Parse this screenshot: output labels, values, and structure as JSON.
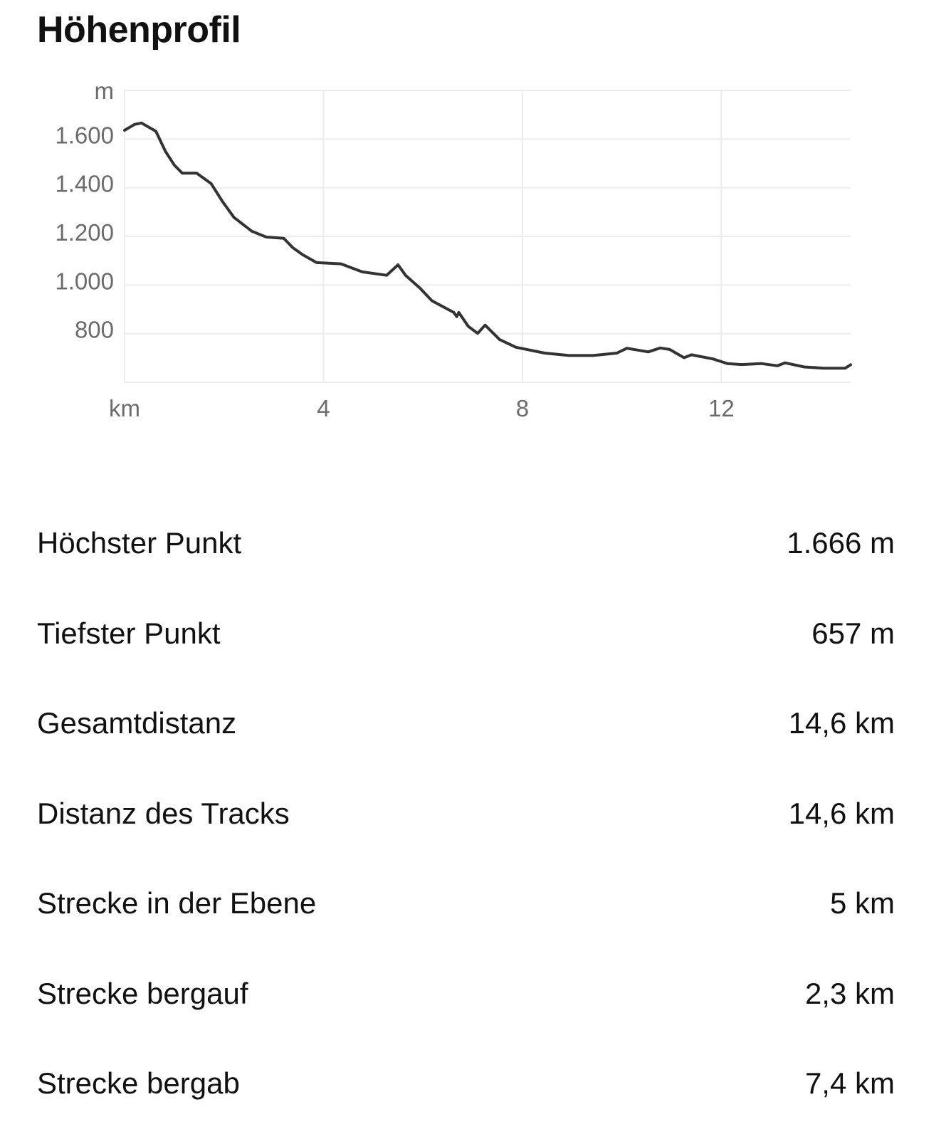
{
  "title": "Höhenprofil",
  "chart_data": {
    "type": "line",
    "title": "",
    "ylabel": "m",
    "xlabel": "km",
    "xlim": [
      0,
      14.6
    ],
    "ylim": [
      600,
      1800
    ],
    "grid": true,
    "line_color": "#333333",
    "x_ticks": [
      {
        "value": 0,
        "label": "km"
      },
      {
        "value": 4,
        "label": "4"
      },
      {
        "value": 8,
        "label": "8"
      },
      {
        "value": 12,
        "label": "12"
      }
    ],
    "y_ticks": [
      {
        "value": 1800,
        "label": "m"
      },
      {
        "value": 1600,
        "label": "1.600"
      },
      {
        "value": 1400,
        "label": "1.400"
      },
      {
        "value": 1200,
        "label": "1.200"
      },
      {
        "value": 1000,
        "label": "1.000"
      },
      {
        "value": 800,
        "label": "800"
      }
    ],
    "x": [
      0,
      0.2,
      0.34,
      0.63,
      0.82,
      1.0,
      1.16,
      1.45,
      1.74,
      1.98,
      2.2,
      2.56,
      2.85,
      3.2,
      3.38,
      3.57,
      3.86,
      4.35,
      4.78,
      5.27,
      5.5,
      5.65,
      5.94,
      6.18,
      6.62,
      6.68,
      6.72,
      6.91,
      7.1,
      7.25,
      7.54,
      7.87,
      8.45,
      8.94,
      9.42,
      9.9,
      10.1,
      10.53,
      10.77,
      10.96,
      11.25,
      11.4,
      11.83,
      12.12,
      12.41,
      12.8,
      13.13,
      13.28,
      13.67,
      14.06,
      14.49,
      14.6
    ],
    "y": [
      1636,
      1660,
      1666,
      1632,
      1550,
      1493,
      1460,
      1460,
      1417,
      1340,
      1278,
      1221,
      1197,
      1192,
      1154,
      1126,
      1092,
      1087,
      1054,
      1040,
      1083,
      1040,
      987,
      935,
      887,
      870,
      887,
      830,
      801,
      835,
      776,
      744,
      720,
      710,
      710,
      720,
      740,
      725,
      741,
      735,
      701,
      713,
      696,
      677,
      673,
      677,
      668,
      680,
      663,
      658,
      658,
      672
    ]
  },
  "stats": [
    {
      "label": "Höchster Punkt",
      "value": "1.666 m"
    },
    {
      "label": "Tiefster Punkt",
      "value": "657 m"
    },
    {
      "label": "Gesamtdistanz",
      "value": "14,6 km"
    },
    {
      "label": "Distanz des Tracks",
      "value": "14,6 km"
    },
    {
      "label": "Strecke in der Ebene",
      "value": "5 km"
    },
    {
      "label": "Strecke bergauf",
      "value": "2,3 km"
    },
    {
      "label": "Strecke bergab",
      "value": "7,4 km"
    }
  ]
}
